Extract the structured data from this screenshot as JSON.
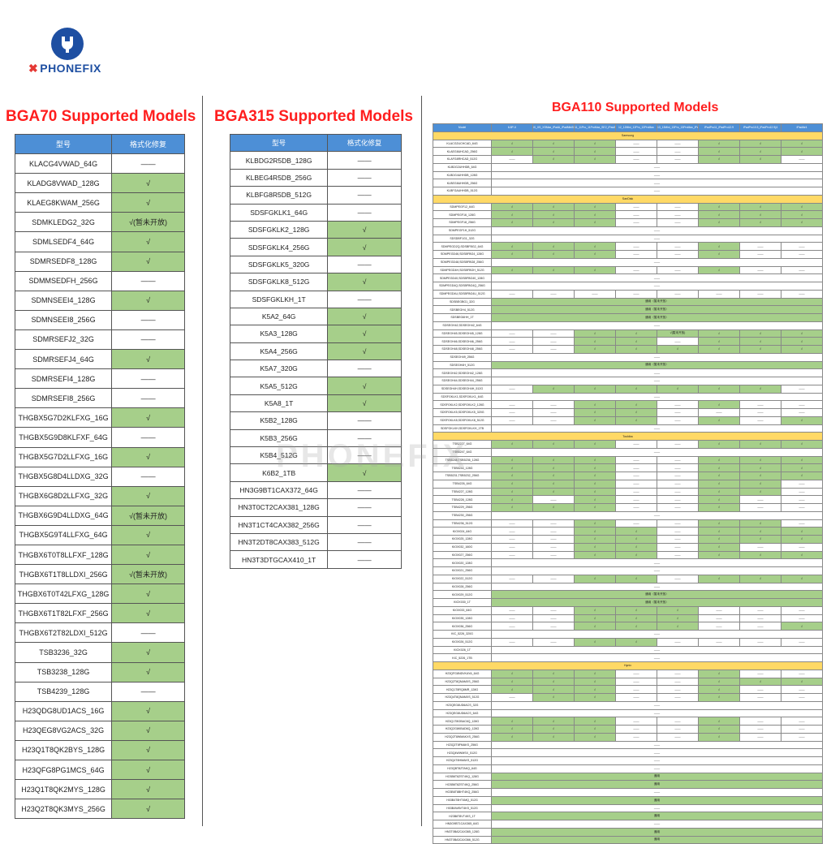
{
  "brand": "PHONEFIX",
  "watermark": "PHONEFIX",
  "bga70": {
    "title": "BGA70 Supported Models",
    "headers": [
      "型号",
      "格式化修复"
    ],
    "rows": [
      [
        "KLACG4VWAD_64G",
        "——"
      ],
      [
        "KLADG8VWAD_128G",
        "√"
      ],
      [
        "KLAEG8KWAM_256G",
        "√"
      ],
      [
        "SDMKLEDG2_32G",
        "√(暂未开放)"
      ],
      [
        "SDMLSEDF4_64G",
        "√"
      ],
      [
        "SDMRSEDF8_128G",
        "√"
      ],
      [
        "SDMMSEDFH_256G",
        "——"
      ],
      [
        "SDMNSEEI4_128G",
        "√"
      ],
      [
        "SDMNSEEI8_256G",
        "——"
      ],
      [
        "SDMRSEFJ2_32G",
        "——"
      ],
      [
        "SDMRSEFJ4_64G",
        "√"
      ],
      [
        "SDMRSEFI4_128G",
        "——"
      ],
      [
        "SDMRSEFI8_256G",
        "——"
      ],
      [
        "THGBX5G7D2KLFXG_16G",
        "√"
      ],
      [
        "THGBX5G9D8KLFXF_64G",
        "——"
      ],
      [
        "THGBX5G7D2LLFXG_16G",
        "√"
      ],
      [
        "THGBX5G8D4LLDXG_32G",
        "——"
      ],
      [
        "THGBX6G8D2LLFXG_32G",
        "√"
      ],
      [
        "THGBX6G9D4LLDXG_64G",
        "√(暂未开放)"
      ],
      [
        "THGBX5G9T4LLFXG_64G",
        "√"
      ],
      [
        "THGBX6T0T8LLFXF_128G",
        "√"
      ],
      [
        "THGBX6T1T8LLDXI_256G",
        "√(暂未开放)"
      ],
      [
        "THGBX6T0T42LFXG_128G",
        "√"
      ],
      [
        "THGBX6T1T82LFXF_256G",
        "√"
      ],
      [
        "THGBX6T2T82LDXI_512G",
        "——"
      ],
      [
        "TSB3236_32G",
        "√"
      ],
      [
        "TSB3238_128G",
        "√"
      ],
      [
        "TSB4239_128G",
        "——"
      ],
      [
        "H23QDG8UD1ACS_16G",
        "√"
      ],
      [
        "H23QEG8VG2ACS_32G",
        "√"
      ],
      [
        "H23Q1T8QK2BYS_128G",
        "√"
      ],
      [
        "H23QFG8PG1MCS_64G",
        "√"
      ],
      [
        "H23Q1T8QK2MYS_128G",
        "√"
      ],
      [
        "H23Q2T8QK3MYS_256G",
        "√"
      ]
    ]
  },
  "bga315": {
    "title": "BGA315 Supported Models",
    "headers": [
      "型号",
      "格式化修复"
    ],
    "rows": [
      [
        "KLBDG2R5DB_128G",
        "——"
      ],
      [
        "KLBEG4R5DB_256G",
        "——"
      ],
      [
        "KLBFG8R5DB_512G",
        "——"
      ],
      [
        "SDSFGKLK1_64G",
        "——"
      ],
      [
        "SDSFGKLK2_128G",
        "√"
      ],
      [
        "SDSFGKLK4_256G",
        "√"
      ],
      [
        "SDSFGKLK5_320G",
        "——"
      ],
      [
        "SDSFGKLK8_512G",
        "√"
      ],
      [
        "SDSFGKLKH_1T",
        "——"
      ],
      [
        "K5A2_64G",
        "√"
      ],
      [
        "K5A3_128G",
        "√"
      ],
      [
        "K5A4_256G",
        "√"
      ],
      [
        "K5A7_320G",
        "——"
      ],
      [
        "K5A5_512G",
        "√"
      ],
      [
        "K5A8_1T",
        "√"
      ],
      [
        "K5B2_128G",
        "——"
      ],
      [
        "K5B3_256G",
        "——"
      ],
      [
        "K5B4_512G",
        "——"
      ],
      [
        "K6B2_1TB",
        "√"
      ],
      [
        "HN3G9BT1CAX372_64G",
        "——"
      ],
      [
        "HN3T0CT2CAX381_128G",
        "——"
      ],
      [
        "HN3T1CT4CAX382_256G",
        "——"
      ],
      [
        "HN3T2DT8CAX383_512G",
        "——"
      ],
      [
        "HN3T3DTGCAX410_1T",
        "——"
      ]
    ]
  },
  "bga110": {
    "title": "BGA110 Supported Models",
    "headers": [
      "Model",
      "6.8P-X",
      "iX_XS_XSMax_iPadA_iPadMini5_iPadAir3",
      "11_11Pro_11ProMax_SE2_iPadA_SE3",
      "12_12Mini_12Pro_12ProMax",
      "13_13Mini_13Pro_13ProMax_iPadMini6",
      "iPadPro11_iPadPro12.9",
      "iPadPro10.5_iPadPro12.9(4",
      "iPadAir4"
    ],
    "sections": [
      {
        "name": "Samsung",
        "rows": [
          {
            "m": "KLACG2UCHCAD_64G",
            "c": [
              "√",
              "√",
              "√",
              "——",
              "——",
              "√",
              "√",
              "√"
            ]
          },
          {
            "m": "KLAEG8UHCAD_256G",
            "c": [
              "√",
              "√",
              "√",
              "——",
              "——",
              "√",
              "√",
              "√"
            ]
          },
          {
            "m": "KLAFG8RHCAD_512G",
            "c": [
              "——",
              "√",
              "√",
              "——",
              "——",
              "√",
              "√",
              "——"
            ]
          },
          {
            "m": "KLBDG2UHHDB_64G",
            "merged": "——"
          },
          {
            "m": "KLBDG4UHHDB_128G",
            "merged": "——"
          },
          {
            "m": "KLBEG8UHHDB_256G",
            "merged": "——"
          },
          {
            "m": "KLBFGAUHHDB_512G",
            "merged": "——"
          }
        ]
      },
      {
        "name": "SanDisk",
        "rows": [
          {
            "m": "SDMPEGF12_64G",
            "c": [
              "√",
              "√",
              "√",
              "——",
              "——",
              "√",
              "√",
              "√"
            ]
          },
          {
            "m": "SDMPEGF16_128G",
            "c": [
              "√",
              "√",
              "√",
              "——",
              "——",
              "√",
              "√",
              "√"
            ]
          },
          {
            "m": "SDMPEGF18_256G",
            "c": [
              "√",
              "√",
              "√",
              "——",
              "——",
              "√",
              "√",
              "√"
            ]
          },
          {
            "m": "SDMPEGF1H_512G",
            "merged": "——"
          },
          {
            "m": "SDSDBF1G1_32G",
            "merged": "——"
          },
          {
            "m": "SDMPEGD2Q,SDSBFBG2_64G",
            "c": [
              "√",
              "√",
              "√",
              "——",
              "——",
              "√",
              "——",
              "——"
            ]
          },
          {
            "m": "SDMPEGD46,SDSBFBG4_128G",
            "c": [
              "√",
              "√",
              "√",
              "——",
              "——",
              "√",
              "——",
              "——"
            ]
          },
          {
            "m": "SDMPEGD48,SDSBFBG8_256G",
            "merged": "——"
          },
          {
            "m": "SDMPEGD4H,SDSBFBGH_512G",
            "c": [
              "√",
              "√",
              "√",
              "——",
              "——",
              "√",
              "——",
              "——"
            ]
          },
          {
            "m": "SDMPEGD40,SDSBFBG40_128G",
            "merged": "——"
          },
          {
            "m": "SDMPEGD4Q,SDSBFBG4Q_256G",
            "merged": "——"
          },
          {
            "m": "SDMPEGD4U,SDSBFBG4U_512G",
            "c": [
              "——",
              "——",
              "——",
              "——",
              "——",
              "——",
              "——",
              "——"
            ]
          },
          {
            "m": "SDSBEGBG1_32G",
            "merged": "通用（暂未开放）"
          },
          {
            "m": "SDSBEGH4_512G",
            "merged": "通用（暂未开放）"
          },
          {
            "m": "SDSBEG6HH_1T",
            "merged": "通用（暂未开放）"
          },
          {
            "m": "SDSEGH42,SDSEGH42_64G",
            "merged": "——"
          },
          {
            "m": "SDSEGH45,SDSEGH45_128G",
            "c": [
              "——",
              "——",
              "√",
              "√",
              "√(暂未开放)",
              "√",
              "√",
              "√"
            ]
          },
          {
            "m": "SDSEGH46,SDSEGH46_256G",
            "c": [
              "——",
              "——",
              "√",
              "√",
              "——",
              "√",
              "√",
              "√"
            ]
          },
          {
            "m": "SDSEGH48,SDSEGH48_256G",
            "c": [
              "——",
              "——",
              "√",
              "√",
              "√",
              "√",
              "√",
              "√"
            ]
          },
          {
            "m": "SDSEGH49_256G",
            "merged": "——"
          },
          {
            "m": "SDSEGH4H_512G",
            "merged": "通用（暂未开放）"
          },
          {
            "m": "SDSEGH42,SDSEGH42_128G",
            "merged": "——"
          },
          {
            "m": "SDSEGH44,SDSEGH44_256G",
            "merged": "——"
          },
          {
            "m": "SDSEGH4H,SDSEGH4H_512G",
            "c": [
              "——",
              "√",
              "√",
              "√",
              "√",
              "√",
              "√",
              "——"
            ]
          },
          {
            "m": "SDSFGKLK1,SDSFGKLK1_64G",
            "merged": "——"
          },
          {
            "m": "SDSFGKLK2,SDSFGKLK2_128G",
            "c": [
              "——",
              "——",
              "√",
              "√",
              "——",
              "√",
              "——",
              "——"
            ]
          },
          {
            "m": "SDSFGKLK5,SDSFGKLK5_320G",
            "c": [
              "——",
              "——",
              "√",
              "√",
              "——",
              "——",
              "——",
              "——"
            ]
          },
          {
            "m": "SDSFGKLK8,SDSFGKLK8_512G",
            "c": [
              "——",
              "——",
              "√",
              "√",
              "——",
              "√",
              "——",
              "√"
            ]
          },
          {
            "m": "SDSFGKLKH,SDSFGKLKH_1TB",
            "merged": "——"
          }
        ]
      },
      {
        "name": "Toshiba",
        "rows": [
          {
            "m": "TSB2227_64G",
            "c": [
              "√",
              "√",
              "√",
              "——",
              "——",
              "√",
              "√",
              "√"
            ]
          },
          {
            "m": "TSB5247_64G",
            "merged": "——"
          },
          {
            "m": "TSB5248,TSB5236_128G",
            "c": [
              "√",
              "√",
              "√",
              "——",
              "——",
              "√",
              "√",
              "√"
            ]
          },
          {
            "m": "TSB5244_128G",
            "c": [
              "√",
              "√",
              "√",
              "——",
              "——",
              "√",
              "√",
              "√"
            ]
          },
          {
            "m": "TSB5231,TSB5232_256G",
            "c": [
              "√",
              "√",
              "√",
              "——",
              "——",
              "√",
              "√",
              "√"
            ]
          },
          {
            "m": "TSB4226_64G",
            "c": [
              "√",
              "√",
              "√",
              "——",
              "——",
              "√",
              "√",
              "——"
            ]
          },
          {
            "m": "TSB4227_128G",
            "c": [
              "√",
              "√",
              "√",
              "——",
              "——",
              "√",
              "√",
              "——"
            ]
          },
          {
            "m": "TSB4228_128G",
            "c": [
              "√",
              "——",
              "√",
              "——",
              "——",
              "√",
              "——",
              "——"
            ]
          },
          {
            "m": "TSB4229_256G",
            "c": [
              "√",
              "√",
              "√",
              "——",
              "——",
              "√",
              "——",
              "——"
            ]
          },
          {
            "m": "TSB4230_256G",
            "merged": "——"
          },
          {
            "m": "TSB4236_512G",
            "c": [
              "——",
              "——",
              "√",
              "——",
              "——",
              "√",
              "√",
              "——"
            ]
          },
          {
            "m": "KIOX024_64G",
            "c": [
              "——",
              "——",
              "√",
              "√",
              "——",
              "√",
              "√",
              "√"
            ]
          },
          {
            "m": "KIOX025_128G",
            "c": [
              "——",
              "——",
              "√",
              "√",
              "——",
              "√",
              "√",
              "√"
            ]
          },
          {
            "m": "KIOX032_160G",
            "c": [
              "——",
              "——",
              "√",
              "√",
              "——",
              "√",
              "——",
              "——"
            ]
          },
          {
            "m": "KIOX027_256G",
            "c": [
              "——",
              "——",
              "√",
              "√",
              "——",
              "√",
              "√",
              "√"
            ]
          },
          {
            "m": "KIOX020_128G",
            "merged": "——"
          },
          {
            "m": "KIOX021_256G",
            "merged": "——"
          },
          {
            "m": "KIOX022_512G",
            "c": [
              "——",
              "——",
              "√",
              "√",
              "——",
              "√",
              "√",
              "√"
            ]
          },
          {
            "m": "KIOX028_256G",
            "merged": "——"
          },
          {
            "m": "KIOX029_512G",
            "merged": "通用（暂未开放）"
          },
          {
            "m": "KIOX030_1T",
            "merged": "通用（暂未开放）"
          },
          {
            "m": "KIOX033_64G",
            "c": [
              "——",
              "——",
              "√",
              "√",
              "√",
              "——",
              "——",
              "——"
            ]
          },
          {
            "m": "KIOX035_128G",
            "c": [
              "——",
              "——",
              "√",
              "√",
              "√",
              "——",
              "——",
              "——"
            ]
          },
          {
            "m": "KIOX036_256G",
            "c": [
              "——",
              "——",
              "√",
              "√",
              "√",
              "——",
              "——",
              "√"
            ]
          },
          {
            "m": "KIC_5226_320G",
            "merged": "——"
          },
          {
            "m": "KIOX026_512G",
            "c": [
              "——",
              "——",
              "√",
              "√",
              "——",
              "——",
              "——",
              "——"
            ]
          },
          {
            "m": "KIOX026_1T",
            "merged": "——"
          },
          {
            "m": "KIC_5226_1TB",
            "merged": "——"
          }
        ]
      },
      {
        "name": "Hynix",
        "rows": [
          {
            "m": "H23QFG8NDVKAYA_64G",
            "c": [
              "√",
              "√",
              "√",
              "——",
              "——",
              "√",
              "——",
              "——"
            ]
          },
          {
            "m": "H23Q2T8QNAMXS_256G",
            "c": [
              "√",
              "√",
              "√",
              "——",
              "——",
              "√",
              "√",
              "√"
            ]
          },
          {
            "m": "H23Q1T8RQ8MR_128G",
            "c": [
              "√",
              "√",
              "√",
              "——",
              "——",
              "√",
              "——",
              "——"
            ]
          },
          {
            "m": "H23Q4T8QNAMXS_512G",
            "c": [
              "——",
              "√",
              "√",
              "——",
              "——",
              "√",
              "——",
              "——"
            ]
          },
          {
            "m": "H23QEG8UD6ACS_32G",
            "merged": "——"
          },
          {
            "m": "H23QEG8UD6ACS_64G",
            "merged": "——"
          },
          {
            "m": "H23Q1T8GBAC6Q_128G",
            "c": [
              "√",
              "√",
              "√",
              "——",
              "——",
              "√",
              "——",
              "——"
            ]
          },
          {
            "m": "H23Q2G8KBAD6Q_128G",
            "c": [
              "√",
              "√",
              "√",
              "——",
              "——",
              "√",
              "——",
              "——"
            ]
          },
          {
            "m": "H23Q2T8WMAKXS_256G",
            "c": [
              "√",
              "√",
              "√",
              "——",
              "——",
              "√",
              "——",
              "——"
            ]
          },
          {
            "m": "H23Q2T8FMAKS_256G",
            "merged": "——"
          },
          {
            "m": "H23Q4WWMSX_512G",
            "merged": "——"
          },
          {
            "m": "H23Q4T8HMAKS_512G",
            "merged": "——"
          },
          {
            "m": "H23QBT8ZTAKQ_64G",
            "merged": "——"
          },
          {
            "m": "HO3B6T8ZST4KQ_128G",
            "merged": "通用"
          },
          {
            "m": "HO3B6T8ZST4KQ_256G",
            "merged": "通用"
          },
          {
            "m": "HO3B6T8BHT4KQ_256G",
            "merged": "——"
          },
          {
            "m": "H03B4T8HT4MQ_512G",
            "merged": "通用"
          },
          {
            "m": "H03B4W8VT4KS_512G",
            "merged": "——"
          },
          {
            "m": "H23B8T8VT4KS_1T",
            "merged": "通用"
          },
          {
            "m": "HN3G9BT1CAX365_64G",
            "merged": "——"
          },
          {
            "m": "HN3T0BA2CAX365_128G",
            "merged": "通用"
          },
          {
            "m": "HN3T0BA3CAX366_512G",
            "merged": "通用"
          }
        ]
      }
    ]
  }
}
